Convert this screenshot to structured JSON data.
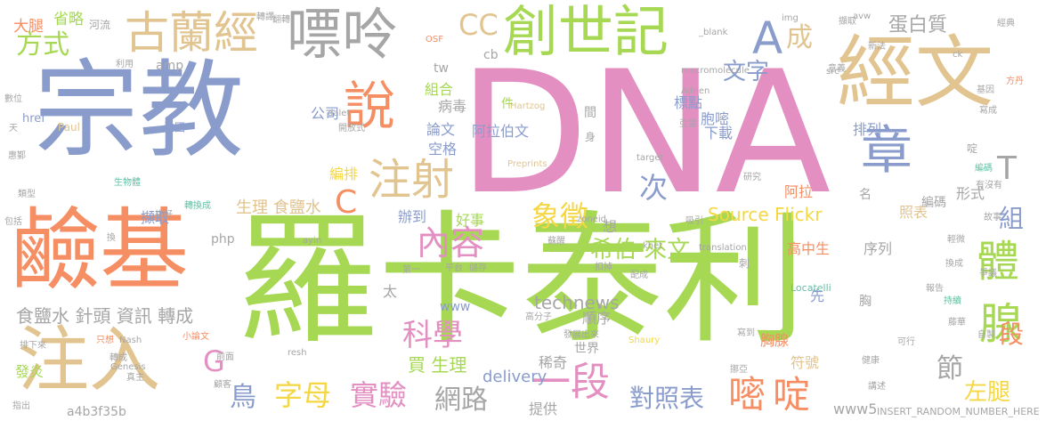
{
  "palette": {
    "blue": "#8a9ccc",
    "green": "#a6d853",
    "orange": "#f68e63",
    "pink": "#e38fc2",
    "sand": "#e1c48f",
    "gray": "#a6a6a6",
    "teal": "#61c2a5",
    "yellow": "#f4d742"
  },
  "words": [
    {
      "t": "DNA",
      "c": "pink"
    },
    {
      "t": "羅卡泰利",
      "c": "green"
    },
    {
      "t": "宗教",
      "c": "blue"
    },
    {
      "t": "經文",
      "c": "sand"
    },
    {
      "t": "鹼基",
      "c": "orange"
    },
    {
      "t": "注入",
      "c": "sand"
    },
    {
      "t": "嘌呤",
      "c": "gray"
    },
    {
      "t": "創世記",
      "c": "green"
    },
    {
      "t": "古蘭經",
      "c": "sand"
    },
    {
      "t": "說",
      "c": "orange"
    },
    {
      "t": "章",
      "c": "blue"
    },
    {
      "t": "A",
      "c": "blue"
    },
    {
      "t": "成",
      "c": "sand"
    },
    {
      "t": "注射",
      "c": "sand"
    },
    {
      "t": "內容",
      "c": "pink"
    },
    {
      "t": "象徵",
      "c": "yellow"
    },
    {
      "t": "體",
      "c": "green"
    },
    {
      "t": "腺",
      "c": "green"
    },
    {
      "t": "一段",
      "c": "pink"
    },
    {
      "t": "嘧",
      "c": "orange"
    },
    {
      "t": "啶",
      "c": "orange"
    },
    {
      "t": "字母",
      "c": "yellow"
    },
    {
      "t": "實驗",
      "c": "pink"
    },
    {
      "t": "網路",
      "c": "gray"
    },
    {
      "t": "對照表",
      "c": "blue"
    },
    {
      "t": "鳥",
      "c": "blue"
    },
    {
      "t": "科學",
      "c": "pink"
    },
    {
      "t": "希伯 來文",
      "c": "green"
    },
    {
      "t": "Source Flickr",
      "c": "yellow"
    },
    {
      "t": "蛋白質",
      "c": "gray"
    },
    {
      "t": "文字",
      "c": "blue"
    },
    {
      "t": "方式",
      "c": "green"
    },
    {
      "t": "CC",
      "c": "sand"
    },
    {
      "t": "G",
      "c": "pink"
    },
    {
      "t": "C",
      "c": "orange"
    },
    {
      "t": "T",
      "c": "gray"
    },
    {
      "t": "次",
      "c": "blue"
    },
    {
      "t": "節",
      "c": "gray"
    },
    {
      "t": "段",
      "c": "orange"
    },
    {
      "t": "組",
      "c": "blue"
    },
    {
      "t": "左腿",
      "c": "yellow"
    },
    {
      "t": "食鹽水 針頭 資訊 轉成",
      "c": "gray"
    },
    {
      "t": "生理 食鹽水",
      "c": "sand"
    },
    {
      "t": "買 生理",
      "c": "green"
    },
    {
      "t": "technews",
      "c": "gray"
    },
    {
      "t": "www",
      "c": "blue"
    },
    {
      "t": "delivery",
      "c": "blue"
    },
    {
      "t": "稀奇",
      "c": "gray"
    },
    {
      "t": "順序",
      "c": "gray"
    },
    {
      "t": "世界",
      "c": "gray"
    },
    {
      "t": "www5",
      "c": "gray"
    },
    {
      "t": "INSERT_RANDOM_NUMBER_HERE",
      "c": "gray"
    },
    {
      "t": "a4b3f35b",
      "c": "gray"
    },
    {
      "t": "大腿",
      "c": "orange"
    },
    {
      "t": "省略",
      "c": "green"
    },
    {
      "t": "河流",
      "c": "gray"
    },
    {
      "t": "amp",
      "c": "gray"
    },
    {
      "t": "tw",
      "c": "gray"
    },
    {
      "t": "cb",
      "c": "gray"
    },
    {
      "t": "組合",
      "c": "green"
    },
    {
      "t": "病毒",
      "c": "gray"
    },
    {
      "t": "公司",
      "c": "blue"
    },
    {
      "t": "論文",
      "c": "blue"
    },
    {
      "t": "空格",
      "c": "blue"
    },
    {
      "t": "阿拉伯文",
      "c": "blue"
    },
    {
      "t": "編排",
      "c": "yellow"
    },
    {
      "t": "擷取",
      "c": "blue"
    },
    {
      "t": "辦到",
      "c": "blue"
    },
    {
      "t": "好事",
      "c": "green"
    },
    {
      "t": "php",
      "c": "gray"
    },
    {
      "t": "標點",
      "c": "blue"
    },
    {
      "t": "胞嘧",
      "c": "blue"
    },
    {
      "t": "下載",
      "c": "blue"
    },
    {
      "t": "排列",
      "c": "blue"
    },
    {
      "t": "阿拉",
      "c": "orange"
    },
    {
      "t": "高中生",
      "c": "orange"
    },
    {
      "t": "序列",
      "c": "gray"
    },
    {
      "t": "照表",
      "c": "sand"
    },
    {
      "t": "編碼",
      "c": "gray"
    },
    {
      "t": "形式",
      "c": "gray"
    },
    {
      "t": "胸腺",
      "c": "orange"
    },
    {
      "t": "符號",
      "c": "sand"
    },
    {
      "t": "提供",
      "c": "gray"
    },
    {
      "t": "發炎",
      "c": "green"
    },
    {
      "t": "href",
      "c": "blue"
    },
    {
      "t": "Paul",
      "c": "sand"
    },
    {
      "t": "法國",
      "c": "blue"
    },
    {
      "t": "Hartzog",
      "c": "sand"
    },
    {
      "t": "Preprints",
      "c": "sand"
    },
    {
      "t": "target",
      "c": "gray"
    },
    {
      "t": "macromolecule",
      "c": "gray"
    },
    {
      "t": "Adrien",
      "c": "gray"
    },
    {
      "t": "Locatelli",
      "c": "teal"
    },
    {
      "t": "zoneid",
      "c": "gray"
    },
    {
      "t": "khet",
      "c": "gray"
    },
    {
      "t": "translation",
      "c": "gray"
    },
    {
      "t": "ayin",
      "c": "gray"
    },
    {
      "t": "Shaury",
      "c": "yellow"
    },
    {
      "t": "Nash",
      "c": "gray"
    },
    {
      "t": "Genesis",
      "c": "gray"
    },
    {
      "t": "resh",
      "c": "gray"
    },
    {
      "t": "dalet",
      "c": "gray"
    },
    {
      "t": "OSF",
      "c": "orange"
    },
    {
      "t": "_blank",
      "c": "gray"
    },
    {
      "t": "img",
      "c": "gray"
    },
    {
      "t": "avw",
      "c": "gray"
    },
    {
      "t": "ck",
      "c": "gray"
    },
    {
      "t": "src",
      "c": "gray"
    },
    {
      "t": "想",
      "c": "gray"
    },
    {
      "t": "太",
      "c": "gray"
    },
    {
      "t": "先",
      "c": "blue"
    },
    {
      "t": "間",
      "c": "gray"
    },
    {
      "t": "件",
      "c": "green"
    },
    {
      "t": "身",
      "c": "gray"
    },
    {
      "t": "名",
      "c": "gray"
    },
    {
      "t": "胸",
      "c": "gray"
    },
    {
      "t": "刺",
      "c": "gray"
    },
    {
      "t": "啶",
      "c": "gray"
    },
    {
      "t": "轉譯",
      "c": "gray"
    },
    {
      "t": "利用",
      "c": "gray"
    },
    {
      "t": "數位",
      "c": "gray"
    },
    {
      "t": "天",
      "c": "gray"
    },
    {
      "t": "惠鄞",
      "c": "gray"
    },
    {
      "t": "類型",
      "c": "gray"
    },
    {
      "t": "包括",
      "c": "gray"
    },
    {
      "t": "換",
      "c": "gray"
    },
    {
      "t": "排下來",
      "c": "gray"
    },
    {
      "t": "指出",
      "c": "gray"
    },
    {
      "t": "只想",
      "c": "orange"
    },
    {
      "t": "小論文",
      "c": "orange"
    },
    {
      "t": "高分子",
      "c": "gray"
    },
    {
      "t": "發展出來",
      "c": "gray"
    },
    {
      "t": "挪亞",
      "c": "gray"
    },
    {
      "t": "健康",
      "c": "gray"
    },
    {
      "t": "可行",
      "c": "gray"
    },
    {
      "t": "經典",
      "c": "gray"
    },
    {
      "t": "新法",
      "c": "gray"
    },
    {
      "t": "意義",
      "c": "gray"
    },
    {
      "t": "方丹",
      "c": "orange"
    },
    {
      "t": "基因",
      "c": "gray"
    },
    {
      "t": "寫成",
      "c": "gray"
    },
    {
      "t": "編碼",
      "c": "teal"
    },
    {
      "t": "有沒有",
      "c": "gray"
    },
    {
      "t": "故事",
      "c": "gray"
    },
    {
      "t": "持續",
      "c": "teal"
    },
    {
      "t": "藤華",
      "c": "gray"
    },
    {
      "t": "自製",
      "c": "gray"
    },
    {
      "t": "爭議",
      "c": "gray"
    },
    {
      "t": "報告",
      "c": "gray"
    },
    {
      "t": "換成",
      "c": "gray"
    },
    {
      "t": "輕微",
      "c": "gray"
    },
    {
      "t": "研究",
      "c": "gray"
    },
    {
      "t": "扣掉",
      "c": "gray"
    },
    {
      "t": "平台",
      "c": "gray"
    },
    {
      "t": "第一",
      "c": "gray"
    },
    {
      "t": "儲存",
      "c": "gray"
    },
    {
      "t": "吸引",
      "c": "gray"
    },
    {
      "t": "蘇醒",
      "c": "gray"
    },
    {
      "t": "翻轉",
      "c": "gray"
    },
    {
      "t": "生物體",
      "c": "teal"
    },
    {
      "t": "轉換成",
      "c": "teal"
    },
    {
      "t": "挑好",
      "c": "gray"
    },
    {
      "t": "轉成",
      "c": "gray"
    },
    {
      "t": "前面",
      "c": "gray"
    },
    {
      "t": "真主",
      "c": "gray"
    },
    {
      "t": "講述",
      "c": "gray"
    },
    {
      "t": "擷取",
      "c": "gray"
    },
    {
      "t": "亞當",
      "c": "gray"
    },
    {
      "t": "顧客",
      "c": "gray"
    },
    {
      "t": "開放式",
      "c": "gray"
    },
    {
      "t": "配成",
      "c": "gray"
    },
    {
      "t": "寫到",
      "c": "gray"
    }
  ]
}
